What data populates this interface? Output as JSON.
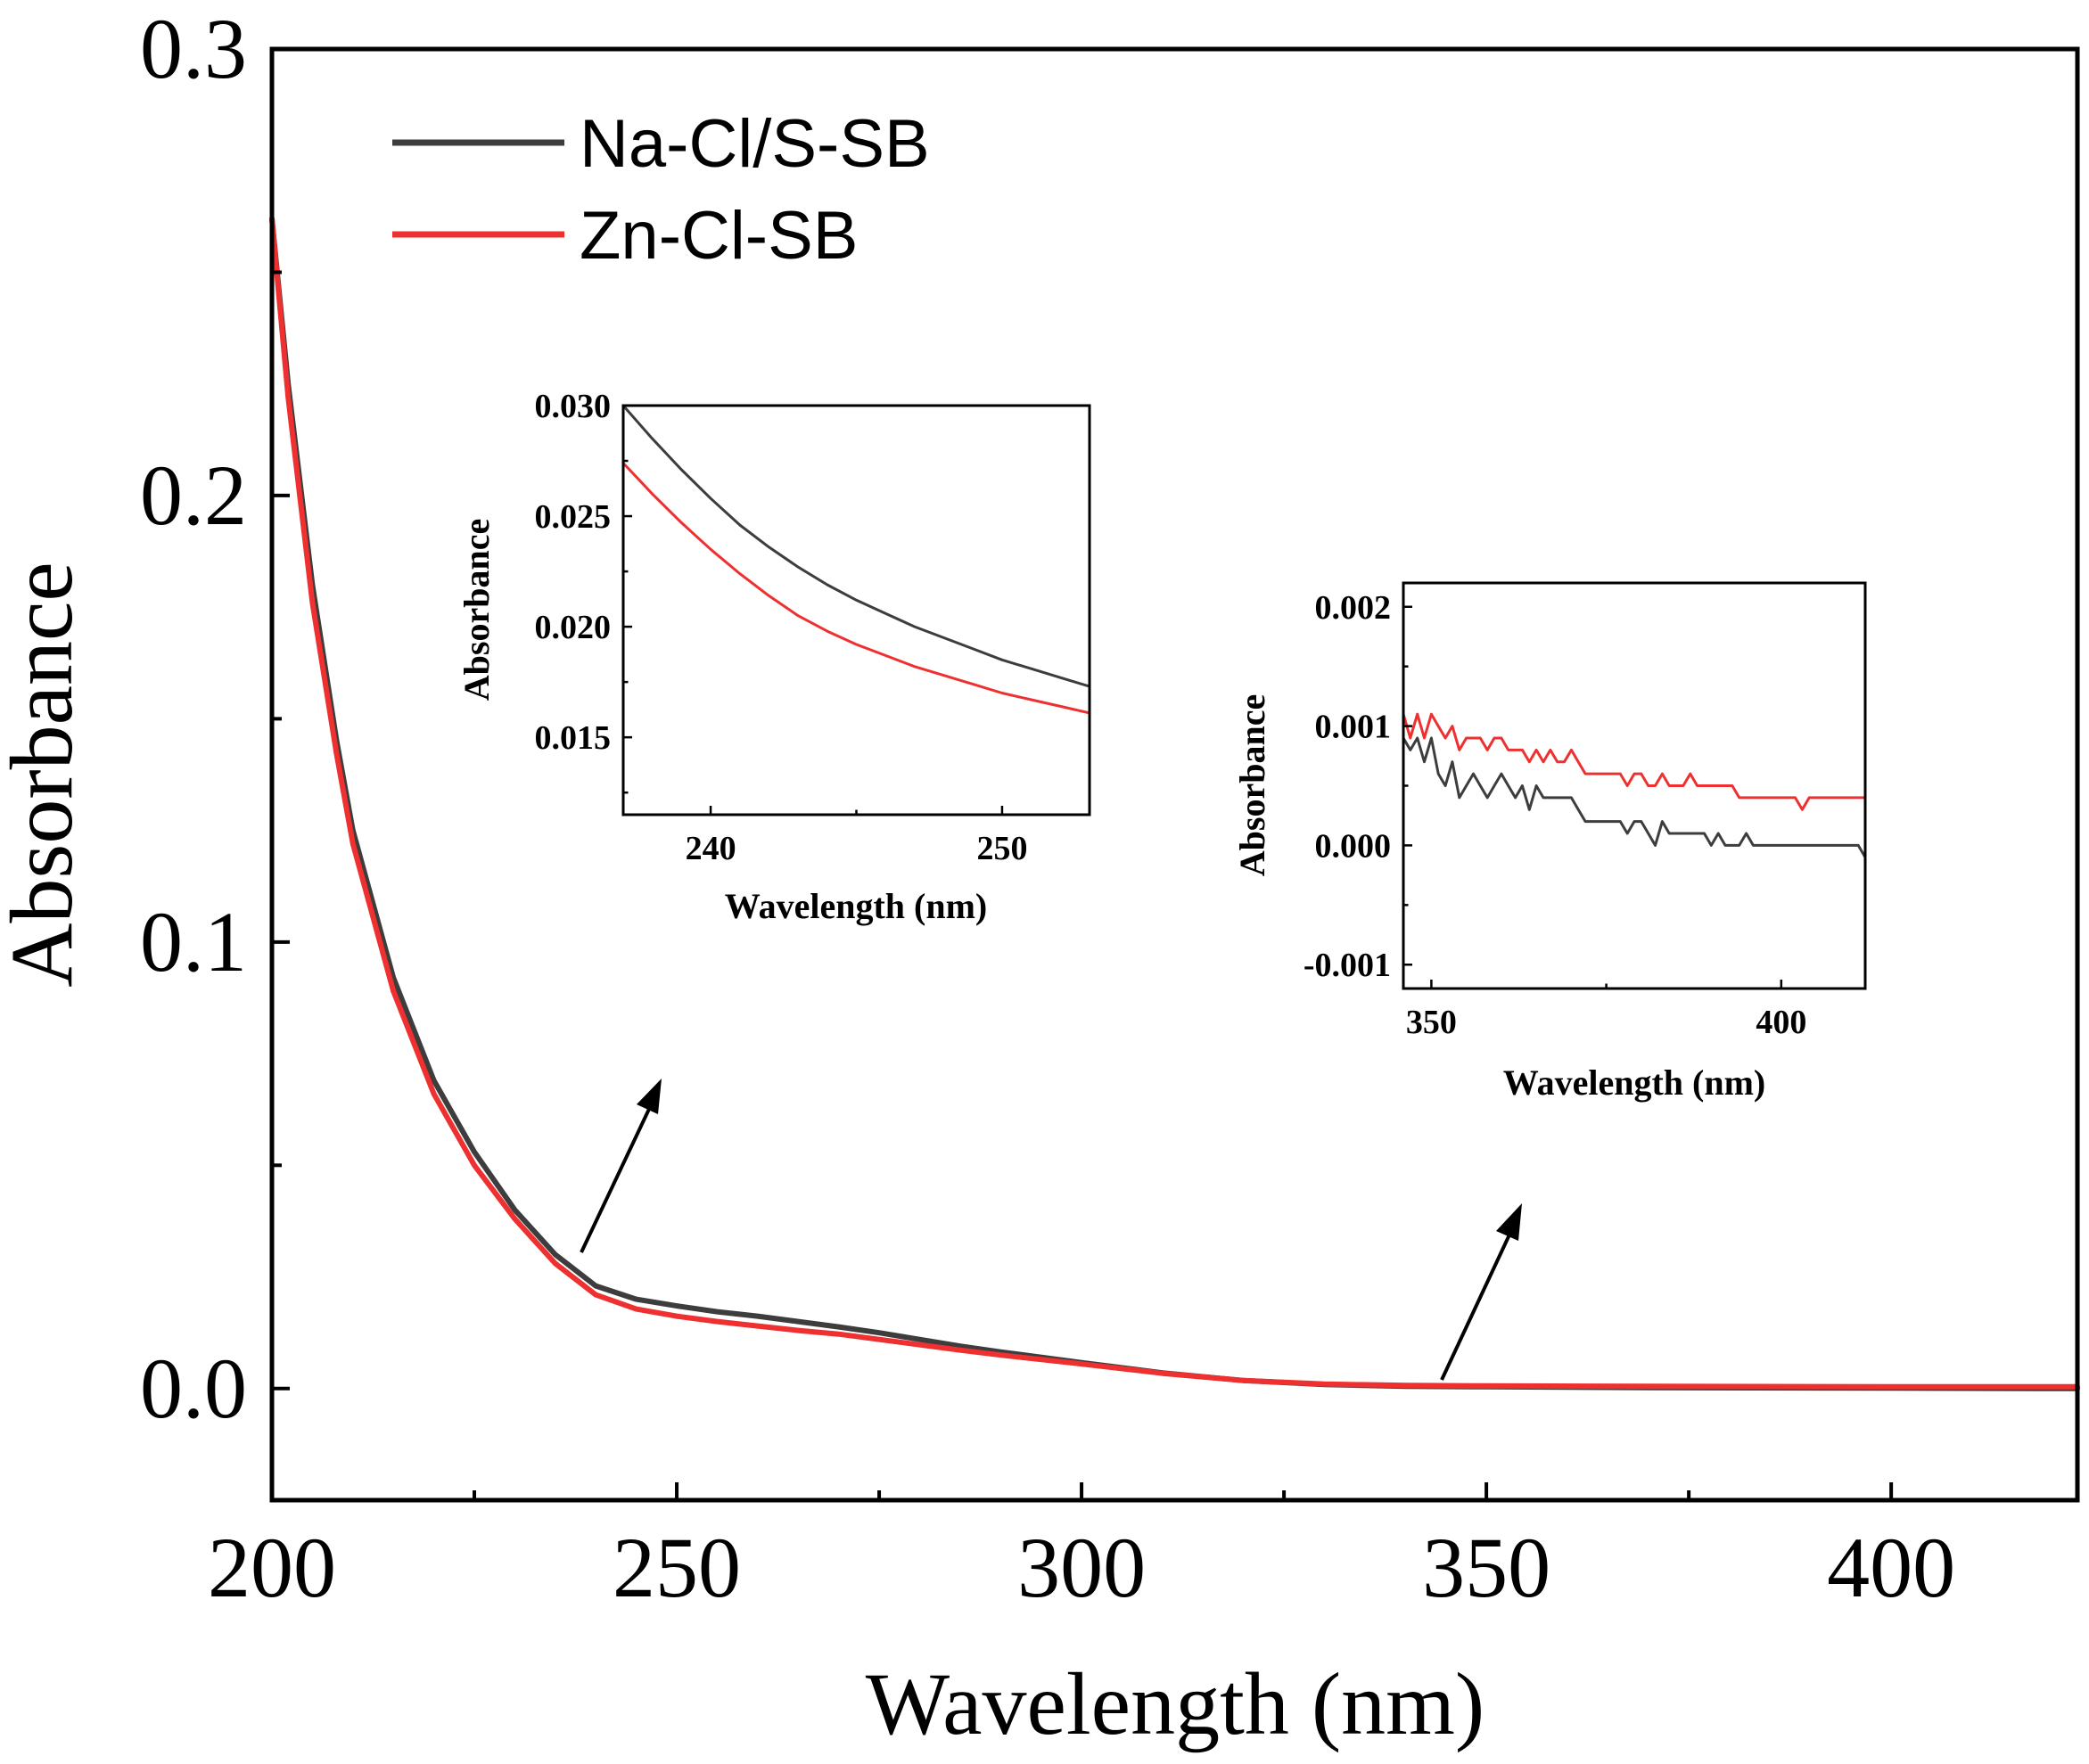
{
  "colors": {
    "series1": "#3d3d3d",
    "series2": "#ee3030",
    "axis": "#000000",
    "arrow": "#000000"
  },
  "chart_data": [
    {
      "type": "line",
      "title": "",
      "xlabel": "Wavelength (nm)",
      "ylabel": "Absorbance",
      "xlim": [
        200,
        423
      ],
      "ylim": [
        -0.025,
        0.3
      ],
      "xticks": [
        200,
        250,
        300,
        350,
        400
      ],
      "xtick_labels": [
        "200",
        "250",
        "300",
        "350",
        "400"
      ],
      "yticks": [
        0.0,
        0.1,
        0.2,
        0.3
      ],
      "ytick_labels": [
        "0.0",
        "0.1",
        "0.2",
        "0.3"
      ],
      "legend": {
        "position": "top-left",
        "entries": [
          "Na-Cl/S-SB",
          "Zn-Cl-SB"
        ]
      },
      "series": [
        {
          "name": "Na-Cl/S-SB",
          "x": [
            200,
            202,
            205,
            208,
            210,
            215,
            220,
            225,
            230,
            235,
            240,
            245,
            250,
            255,
            260,
            265,
            270,
            275,
            280,
            285,
            290,
            300,
            310,
            320,
            330,
            340,
            350,
            370,
            400,
            423
          ],
          "y": [
            0.262,
            0.225,
            0.18,
            0.145,
            0.125,
            0.092,
            0.069,
            0.053,
            0.04,
            0.03,
            0.023,
            0.02,
            0.0185,
            0.0172,
            0.0162,
            0.015,
            0.0138,
            0.0125,
            0.011,
            0.0095,
            0.0082,
            0.0058,
            0.0035,
            0.0018,
            0.0009,
            0.0005,
            0.0004,
            0.0002,
            0.0001,
            0.0
          ]
        },
        {
          "name": "Zn-Cl-SB",
          "x": [
            200,
            202,
            205,
            208,
            210,
            215,
            220,
            225,
            230,
            235,
            240,
            245,
            250,
            255,
            260,
            265,
            270,
            275,
            280,
            285,
            290,
            300,
            310,
            320,
            330,
            340,
            350,
            370,
            400,
            423
          ],
          "y": [
            0.262,
            0.222,
            0.176,
            0.142,
            0.122,
            0.089,
            0.066,
            0.05,
            0.038,
            0.028,
            0.021,
            0.0178,
            0.0162,
            0.015,
            0.014,
            0.013,
            0.0122,
            0.011,
            0.0098,
            0.0086,
            0.0075,
            0.0055,
            0.0034,
            0.0018,
            0.001,
            0.0007,
            0.0006,
            0.0005,
            0.0004,
            0.0004
          ]
        }
      ]
    },
    {
      "type": "line",
      "title": "",
      "xlabel": "Wavelength (nm)",
      "ylabel": "Absorbance",
      "xlim": [
        237,
        253
      ],
      "ylim": [
        0.0115,
        0.03
      ],
      "xticks": [
        240,
        250
      ],
      "xtick_labels": [
        "240",
        "250"
      ],
      "yticks": [
        0.015,
        0.02,
        0.025,
        0.03
      ],
      "ytick_labels": [
        "0.015",
        "0.020",
        "0.025",
        "0.030"
      ],
      "series": [
        {
          "name": "Na-Cl/S-SB",
          "x": [
            237,
            238,
            239,
            240,
            241,
            242,
            243,
            244,
            245,
            246,
            247,
            248,
            249,
            250,
            251,
            252,
            253
          ],
          "y": [
            0.03,
            0.0285,
            0.0271,
            0.0258,
            0.0246,
            0.0236,
            0.0227,
            0.0219,
            0.0212,
            0.0206,
            0.02,
            0.0195,
            0.019,
            0.0185,
            0.0181,
            0.0177,
            0.0173
          ]
        },
        {
          "name": "Zn-Cl-SB",
          "x": [
            237,
            238,
            239,
            240,
            241,
            242,
            243,
            244,
            245,
            246,
            247,
            248,
            249,
            250,
            251,
            252,
            253
          ],
          "y": [
            0.0274,
            0.026,
            0.0247,
            0.0235,
            0.0224,
            0.0214,
            0.0205,
            0.0198,
            0.0192,
            0.0187,
            0.0182,
            0.0178,
            0.0174,
            0.017,
            0.0167,
            0.0164,
            0.0161
          ]
        }
      ]
    },
    {
      "type": "line",
      "title": "",
      "xlabel": "Wavelength (nm)",
      "ylabel": "Absorbance",
      "xlim": [
        346,
        412
      ],
      "ylim": [
        -0.0012,
        0.0022
      ],
      "xticks": [
        350,
        400
      ],
      "xtick_labels": [
        "350",
        "400"
      ],
      "yticks": [
        -0.001,
        0.0,
        0.001,
        0.002
      ],
      "ytick_labels": [
        "-0.001",
        "0.000",
        "0.001",
        "0.002"
      ],
      "series": [
        {
          "name": "Na-Cl/S-SB",
          "x": [
            346,
            347,
            348,
            349,
            350,
            351,
            352,
            353,
            354,
            355,
            356,
            357,
            358,
            359,
            360,
            361,
            362,
            363,
            364,
            365,
            366,
            367,
            368,
            369,
            370,
            371,
            372,
            373,
            374,
            375,
            376,
            377,
            378,
            379,
            380,
            381,
            382,
            383,
            384,
            385,
            386,
            387,
            388,
            389,
            390,
            391,
            392,
            393,
            394,
            395,
            396,
            397,
            398,
            399,
            400,
            402,
            405,
            408,
            411,
            412
          ],
          "y": [
            0.0009,
            0.0008,
            0.0009,
            0.0007,
            0.0009,
            0.0006,
            0.0005,
            0.0007,
            0.0004,
            0.0005,
            0.0006,
            0.0005,
            0.0004,
            0.0005,
            0.0006,
            0.0005,
            0.0004,
            0.0005,
            0.0003,
            0.0005,
            0.0004,
            0.0004,
            0.0004,
            0.0004,
            0.0004,
            0.0003,
            0.0002,
            0.0002,
            0.0002,
            0.0002,
            0.0002,
            0.0002,
            0.0001,
            0.0002,
            0.0002,
            0.0001,
            0.0,
            0.0002,
            0.0001,
            0.0001,
            0.0001,
            0.0001,
            0.0001,
            0.0001,
            0.0,
            0.0001,
            0.0,
            0.0,
            0.0,
            0.0001,
            0.0,
            0.0,
            0.0,
            0.0,
            0.0,
            0.0,
            0.0,
            0.0,
            0.0,
            -0.0001
          ]
        },
        {
          "name": "Zn-Cl-SB",
          "x": [
            346,
            347,
            348,
            349,
            350,
            351,
            352,
            353,
            354,
            355,
            356,
            357,
            358,
            359,
            360,
            361,
            362,
            363,
            364,
            365,
            366,
            367,
            368,
            369,
            370,
            371,
            372,
            373,
            374,
            375,
            376,
            377,
            378,
            379,
            380,
            381,
            382,
            383,
            384,
            385,
            386,
            387,
            388,
            389,
            390,
            391,
            392,
            393,
            394,
            395,
            396,
            397,
            398,
            399,
            400,
            401,
            402,
            403,
            404,
            405,
            406,
            408,
            410,
            412
          ],
          "y": [
            0.0011,
            0.0009,
            0.0011,
            0.0009,
            0.0011,
            0.001,
            0.0009,
            0.001,
            0.0008,
            0.0009,
            0.0009,
            0.0009,
            0.0008,
            0.0009,
            0.0009,
            0.0008,
            0.0008,
            0.0008,
            0.0007,
            0.0008,
            0.0007,
            0.0008,
            0.0007,
            0.0007,
            0.0008,
            0.0007,
            0.0006,
            0.0006,
            0.0006,
            0.0006,
            0.0006,
            0.0006,
            0.0005,
            0.0006,
            0.0006,
            0.0005,
            0.0005,
            0.0006,
            0.0005,
            0.0005,
            0.0005,
            0.0006,
            0.0005,
            0.0005,
            0.0005,
            0.0005,
            0.0005,
            0.0005,
            0.0004,
            0.0004,
            0.0004,
            0.0004,
            0.0004,
            0.0004,
            0.0004,
            0.0004,
            0.0004,
            0.0003,
            0.0004,
            0.0004,
            0.0004,
            0.0004,
            0.0004,
            0.0004
          ]
        }
      ]
    }
  ]
}
